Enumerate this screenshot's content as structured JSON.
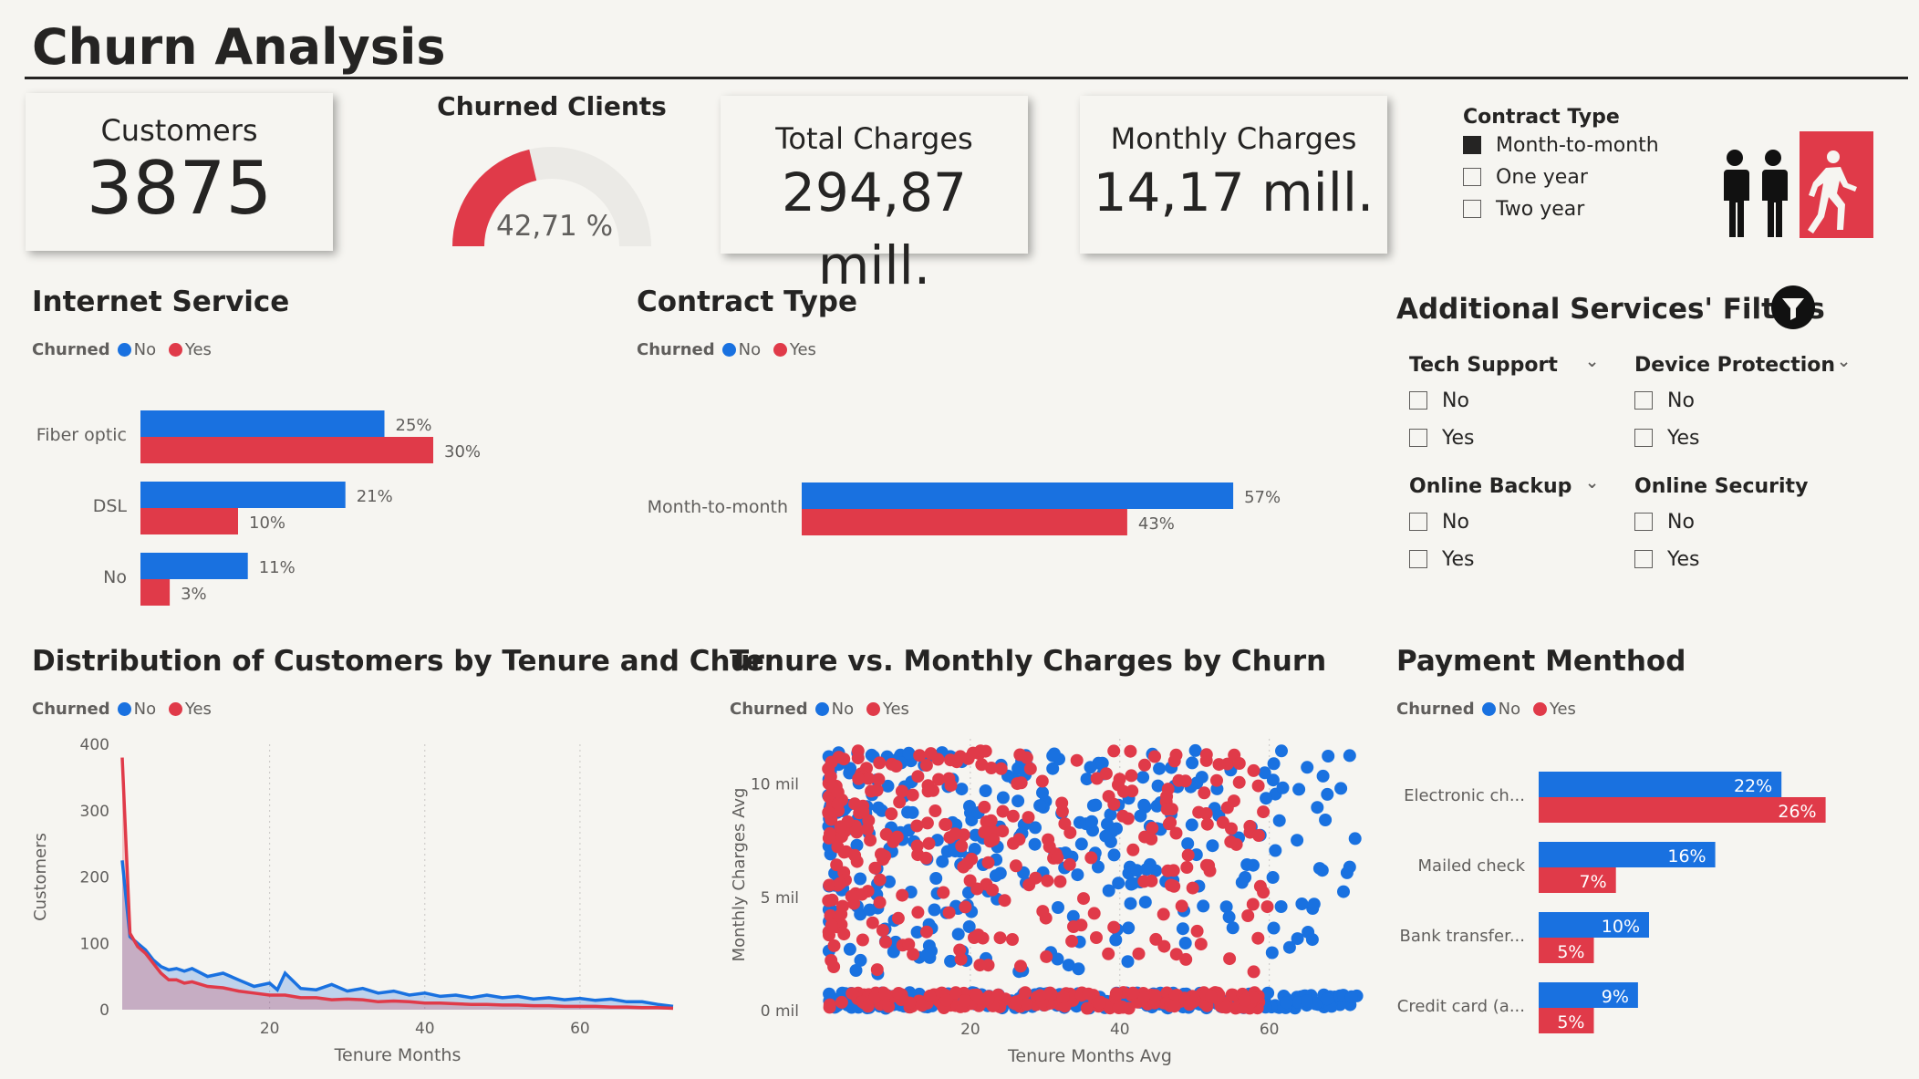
{
  "page_title": "Churn Analysis",
  "colors": {
    "no": "#1971e0",
    "yes": "#e03a49",
    "text": "#252423",
    "muted": "#605e5c",
    "background": "#f6f5f1"
  },
  "kpis": {
    "customers": {
      "label": "Customers",
      "value": "3875"
    },
    "total_charges": {
      "label": "Total Charges",
      "value": "294,87 mill."
    },
    "monthly_charges": {
      "label": "Monthly Charges",
      "value": "14,17 mill."
    }
  },
  "gauge": {
    "title": "Churned Clients",
    "value_label": "42,71 %",
    "fraction": 0.4271
  },
  "contract_slicer": {
    "title": "Contract Type",
    "options": [
      {
        "label": "Month-to-month",
        "checked": true
      },
      {
        "label": "One year",
        "checked": false
      },
      {
        "label": "Two year",
        "checked": false
      }
    ]
  },
  "logo_icon": "people-exit-icon",
  "legend": {
    "title": "Churned",
    "no": "No",
    "yes": "Yes"
  },
  "additional_filters": {
    "title": "Additional Services' Filters",
    "icon": "filter-icon",
    "groups": [
      {
        "title": "Tech Support",
        "options": [
          "No",
          "Yes"
        ],
        "has_chevron": true
      },
      {
        "title": "Device Protection",
        "options": [
          "No",
          "Yes"
        ],
        "has_chevron": true
      },
      {
        "title": "Online Backup",
        "options": [
          "No",
          "Yes"
        ],
        "has_chevron": true
      },
      {
        "title": "Online Security",
        "options": [
          "No",
          "Yes"
        ],
        "has_chevron": false
      }
    ]
  },
  "chart_data": [
    {
      "id": "internet_service",
      "type": "bar",
      "title": "Internet Service",
      "categories": [
        "Fiber optic",
        "DSL",
        "No"
      ],
      "series": [
        {
          "name": "No",
          "values": [
            25,
            21,
            11
          ],
          "labels": [
            "25%",
            "21%",
            "11%"
          ]
        },
        {
          "name": "Yes",
          "values": [
            30,
            10,
            3
          ],
          "labels": [
            "30%",
            "10%",
            "3%"
          ]
        }
      ]
    },
    {
      "id": "contract_type",
      "type": "bar",
      "title": "Contract Type",
      "categories": [
        "Month-to-month"
      ],
      "series": [
        {
          "name": "No",
          "values": [
            57
          ],
          "labels": [
            "57%"
          ]
        },
        {
          "name": "Yes",
          "values": [
            43
          ],
          "labels": [
            "43%"
          ]
        }
      ]
    },
    {
      "id": "tenure_distribution",
      "type": "area",
      "title": "Distribution of Customers by Tenure and Churn",
      "xlabel": "Tenure Months",
      "ylabel": "Customers",
      "xlim": [
        1,
        72
      ],
      "ylim": [
        0,
        400
      ],
      "xticks": [
        "20",
        "40",
        "60"
      ],
      "yticks": [
        "0",
        "100",
        "200",
        "300",
        "400"
      ],
      "series": [
        {
          "name": "No",
          "points": [
            [
              1,
              225
            ],
            [
              2,
              110
            ],
            [
              3,
              100
            ],
            [
              4,
              90
            ],
            [
              5,
              75
            ],
            [
              6,
              65
            ],
            [
              7,
              60
            ],
            [
              8,
              62
            ],
            [
              9,
              58
            ],
            [
              10,
              62
            ],
            [
              12,
              50
            ],
            [
              14,
              55
            ],
            [
              16,
              45
            ],
            [
              18,
              35
            ],
            [
              20,
              40
            ],
            [
              21,
              30
            ],
            [
              22,
              55
            ],
            [
              24,
              32
            ],
            [
              26,
              30
            ],
            [
              28,
              38
            ],
            [
              30,
              28
            ],
            [
              32,
              32
            ],
            [
              34,
              25
            ],
            [
              36,
              28
            ],
            [
              38,
              22
            ],
            [
              40,
              25
            ],
            [
              42,
              20
            ],
            [
              44,
              22
            ],
            [
              46,
              18
            ],
            [
              48,
              22
            ],
            [
              50,
              18
            ],
            [
              52,
              20
            ],
            [
              54,
              16
            ],
            [
              56,
              18
            ],
            [
              58,
              15
            ],
            [
              60,
              17
            ],
            [
              62,
              14
            ],
            [
              64,
              16
            ],
            [
              66,
              12
            ],
            [
              68,
              12
            ],
            [
              70,
              8
            ],
            [
              72,
              5
            ]
          ]
        },
        {
          "name": "Yes",
          "points": [
            [
              1,
              380
            ],
            [
              2,
              115
            ],
            [
              3,
              95
            ],
            [
              4,
              85
            ],
            [
              5,
              70
            ],
            [
              6,
              55
            ],
            [
              7,
              45
            ],
            [
              8,
              45
            ],
            [
              9,
              40
            ],
            [
              10,
              42
            ],
            [
              12,
              35
            ],
            [
              14,
              33
            ],
            [
              16,
              28
            ],
            [
              18,
              25
            ],
            [
              20,
              22
            ],
            [
              22,
              22
            ],
            [
              24,
              18
            ],
            [
              26,
              18
            ],
            [
              28,
              15
            ],
            [
              30,
              16
            ],
            [
              32,
              15
            ],
            [
              34,
              12
            ],
            [
              36,
              13
            ],
            [
              38,
              12
            ],
            [
              40,
              10
            ],
            [
              42,
              10
            ],
            [
              44,
              9
            ],
            [
              46,
              8
            ],
            [
              48,
              8
            ],
            [
              50,
              7
            ],
            [
              52,
              7
            ],
            [
              54,
              6
            ],
            [
              56,
              6
            ],
            [
              58,
              5
            ],
            [
              60,
              5
            ],
            [
              62,
              5
            ],
            [
              64,
              4
            ],
            [
              66,
              4
            ],
            [
              68,
              3
            ],
            [
              70,
              3
            ],
            [
              72,
              2
            ]
          ]
        }
      ]
    },
    {
      "id": "tenure_vs_monthly",
      "type": "scatter",
      "title": "Tenure vs. Monthly Charges by Churn",
      "xlabel": "Tenure Months Avg",
      "ylabel": "Monthly Charges Avg",
      "xlim": [
        0,
        72
      ],
      "ylim": [
        0,
        12
      ],
      "xticks": [
        "20",
        "40",
        "60"
      ],
      "yticks": [
        "0 mil",
        "5 mil",
        "10 mil"
      ],
      "series": [
        {
          "name": "No",
          "approx_points": 600,
          "x_range": [
            1,
            72
          ],
          "y_bands": [
            [
              0.1,
              0.8
            ],
            [
              1.5,
              11.5
            ]
          ]
        },
        {
          "name": "Yes",
          "approx_points": 500,
          "x_range": [
            1,
            60
          ],
          "y_bands": [
            [
              0.1,
              0.8
            ],
            [
              1.5,
              11.5
            ]
          ]
        }
      ]
    },
    {
      "id": "payment_method",
      "type": "bar",
      "title": "Payment Menthod",
      "categories": [
        "Electronic ch...",
        "Mailed check",
        "Bank transfer...",
        "Credit card (a..."
      ],
      "series": [
        {
          "name": "No",
          "values": [
            22,
            16,
            10,
            9
          ],
          "labels": [
            "22%",
            "16%",
            "10%",
            "9%"
          ]
        },
        {
          "name": "Yes",
          "values": [
            26,
            7,
            5,
            5
          ],
          "labels": [
            "26%",
            "7%",
            "5%",
            "5%"
          ]
        }
      ]
    }
  ]
}
